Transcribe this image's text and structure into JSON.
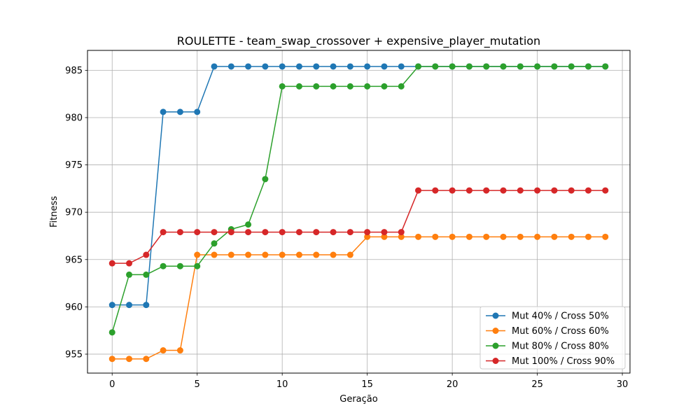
{
  "chart_data": {
    "type": "line",
    "title": "ROULETTE - team_swap_crossover + expensive_player_mutation",
    "xlabel": "Geração",
    "ylabel": "Fitness",
    "xlim": [
      -1.45,
      30.45
    ],
    "ylim": [
      953.0,
      987.1
    ],
    "xticks": [
      0,
      5,
      10,
      15,
      20,
      25,
      30
    ],
    "xtick_labels": [
      "0",
      "5",
      "10",
      "15",
      "20",
      "25",
      "30"
    ],
    "yticks": [
      955,
      960,
      965,
      970,
      975,
      980,
      985
    ],
    "ytick_labels": [
      "955",
      "960",
      "965",
      "970",
      "975",
      "980",
      "985"
    ],
    "grid": true,
    "legend_position": "lower-right",
    "x": [
      0,
      1,
      2,
      3,
      4,
      5,
      6,
      7,
      8,
      9,
      10,
      11,
      12,
      13,
      14,
      15,
      16,
      17,
      18,
      19,
      20,
      21,
      22,
      23,
      24,
      25,
      26,
      27,
      28,
      29
    ],
    "series": [
      {
        "name": "Mut 40% / Cross 50%",
        "color": "#1f77b4",
        "values": [
          960.2,
          960.2,
          960.2,
          980.6,
          980.6,
          980.6,
          985.4,
          985.4,
          985.4,
          985.4,
          985.4,
          985.4,
          985.4,
          985.4,
          985.4,
          985.4,
          985.4,
          985.4,
          985.4,
          985.4,
          985.4,
          985.4,
          985.4,
          985.4,
          985.4,
          985.4,
          985.4,
          985.4,
          985.4,
          985.4
        ]
      },
      {
        "name": "Mut 60% / Cross 60%",
        "color": "#ff7f0e",
        "values": [
          954.5,
          954.5,
          954.5,
          955.4,
          955.4,
          965.5,
          965.5,
          965.5,
          965.5,
          965.5,
          965.5,
          965.5,
          965.5,
          965.5,
          965.5,
          967.4,
          967.4,
          967.4,
          967.4,
          967.4,
          967.4,
          967.4,
          967.4,
          967.4,
          967.4,
          967.4,
          967.4,
          967.4,
          967.4,
          967.4
        ]
      },
      {
        "name": "Mut 80% / Cross 80%",
        "color": "#2ca02c",
        "values": [
          957.3,
          963.4,
          963.4,
          964.3,
          964.3,
          964.3,
          966.7,
          968.2,
          968.7,
          973.5,
          983.3,
          983.3,
          983.3,
          983.3,
          983.3,
          983.3,
          983.3,
          983.3,
          985.4,
          985.4,
          985.4,
          985.4,
          985.4,
          985.4,
          985.4,
          985.4,
          985.4,
          985.4,
          985.4,
          985.4
        ]
      },
      {
        "name": "Mut 100% / Cross 90%",
        "color": "#d62728",
        "values": [
          964.6,
          964.6,
          965.5,
          967.9,
          967.9,
          967.9,
          967.9,
          967.9,
          967.9,
          967.9,
          967.9,
          967.9,
          967.9,
          967.9,
          967.9,
          967.9,
          967.9,
          967.9,
          972.3,
          972.3,
          972.3,
          972.3,
          972.3,
          972.3,
          972.3,
          972.3,
          972.3,
          972.3,
          972.3,
          972.3
        ]
      }
    ]
  }
}
